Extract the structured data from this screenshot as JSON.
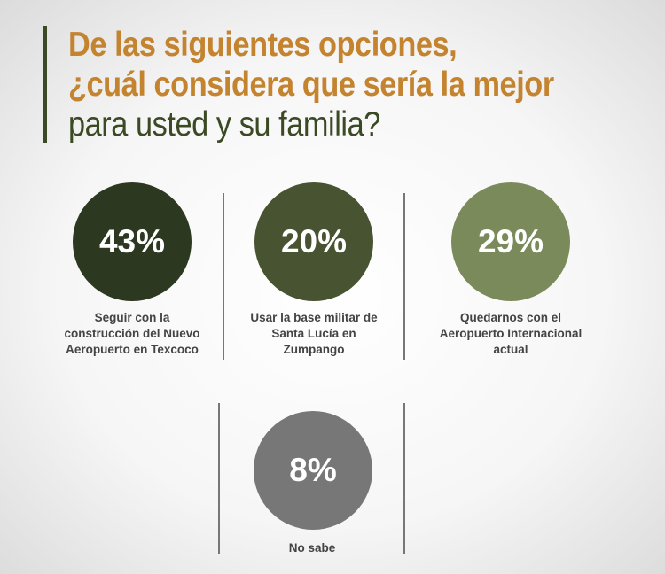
{
  "title": {
    "line1": "De las siguientes opciones,",
    "line2": "¿cuál considera que sería la mejor",
    "line3": "para usted y su familia?"
  },
  "colors": {
    "title_accent": "#c4832f",
    "title_dark": "#3b4a24"
  },
  "chart_data": {
    "type": "table",
    "title": "De las siguientes opciones, ¿cuál considera que sería la mejor para usted y su familia?",
    "categories": [
      "Seguir con la construcción del Nuevo Aeropuerto en Texcoco",
      "Usar la base militar de Santa Lucía en Zumpango",
      "Quedarnos con el Aeropuerto Internacional actual",
      "No sabe"
    ],
    "values": [
      43,
      20,
      29,
      8
    ],
    "value_labels": [
      "43%",
      "20%",
      "29%",
      "8%"
    ],
    "colors": [
      "#2d3820",
      "#485331",
      "#7a8a5a",
      "#777777"
    ]
  }
}
